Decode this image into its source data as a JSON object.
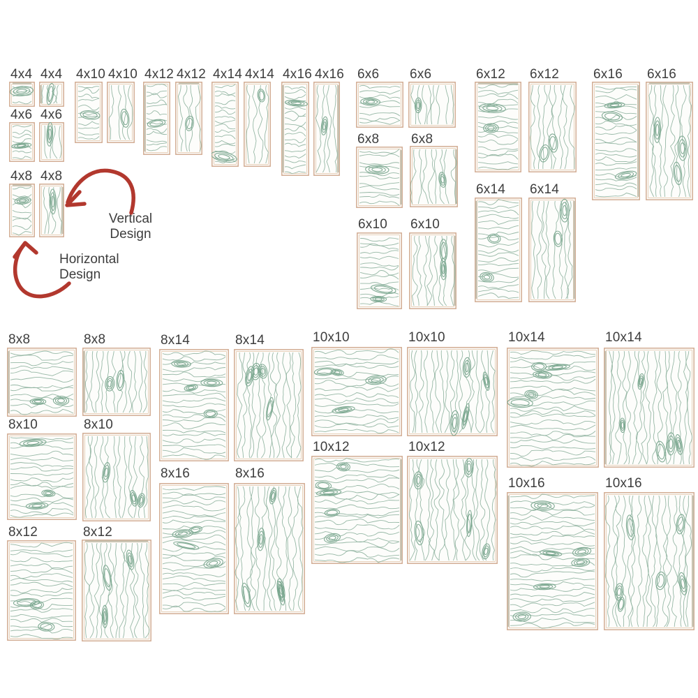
{
  "board": {
    "sizes": [
      {
        "label": "4x4"
      },
      {
        "label": "4x6"
      },
      {
        "label": "4x8"
      },
      {
        "label": "4x10"
      },
      {
        "label": "4x12"
      },
      {
        "label": "4x14"
      },
      {
        "label": "4x16"
      },
      {
        "label": "6x6"
      },
      {
        "label": "6x8"
      },
      {
        "label": "6x10"
      },
      {
        "label": "6x12"
      },
      {
        "label": "6x14"
      },
      {
        "label": "6x16"
      },
      {
        "label": "8x8"
      },
      {
        "label": "8x10"
      },
      {
        "label": "8x12"
      },
      {
        "label": "8x14"
      },
      {
        "label": "8x16"
      },
      {
        "label": "10x10"
      },
      {
        "label": "10x12"
      },
      {
        "label": "10x14"
      },
      {
        "label": "10x16"
      }
    ]
  },
  "annotations": {
    "vertical": {
      "line1": "Vertical",
      "line2": "Design"
    },
    "horizontal": {
      "line1": "Horizontal",
      "line2": "Design"
    }
  },
  "palette": {
    "grain_line": "#8cb09c",
    "knot": "#78a58d",
    "border": "#cfa78c",
    "border_inner": "#e3c7ad",
    "edge_strip": "#b5b5a4",
    "swatch_fill": "#fdfdfb",
    "label_text": "#3d3d3d",
    "arrow": "#b2382e",
    "background": "#ffffff"
  }
}
